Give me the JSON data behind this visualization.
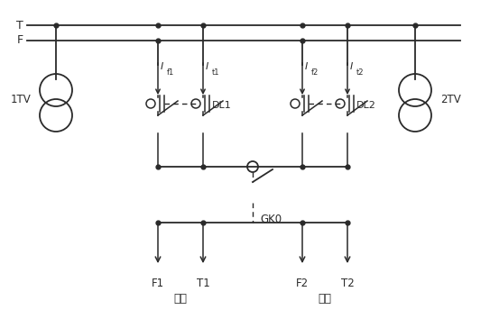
{
  "bg_color": "#ffffff",
  "line_color": "#2a2a2a",
  "fig_width": 5.43,
  "fig_height": 3.54,
  "dpi": 100,
  "T_label": "T",
  "F_label": "F",
  "label_1TV": "1TV",
  "label_2TV": "2TV",
  "label_DL1": "DL1",
  "label_DL2": "DL2",
  "label_GK0": "GK0",
  "label_F1": "F1",
  "label_T1": "T1",
  "label_F2": "F2",
  "label_T2": "T2",
  "label_down": "下行",
  "label_up": "上行"
}
